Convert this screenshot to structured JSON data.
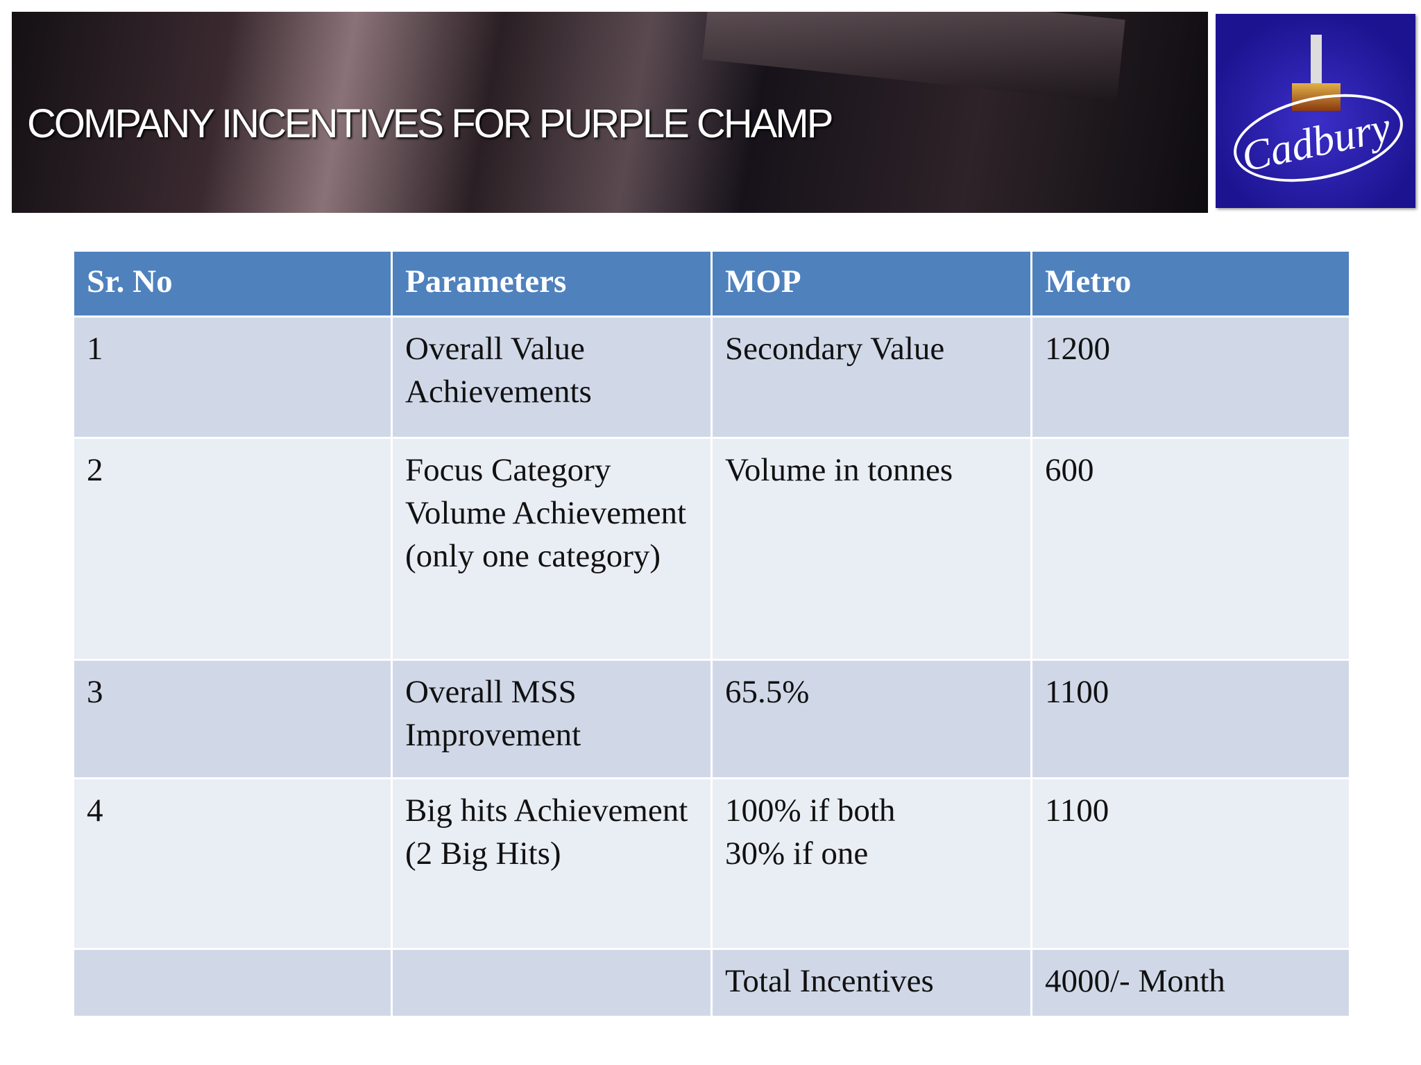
{
  "header": {
    "title": "COMPANY INCENTIVES FOR PURPLE CHAMP",
    "logo": "Cadbury"
  },
  "table": {
    "columns": [
      "Sr. No",
      "Parameters",
      "MOP",
      "Metro"
    ],
    "rows": [
      [
        "1",
        "Overall Value Achievements",
        "Secondary Value",
        "1200"
      ],
      [
        "2",
        "Focus Category Volume Achievement (only one category)",
        "Volume in tonnes",
        "600"
      ],
      [
        "3",
        "Overall MSS Improvement",
        "65.5%",
        "1100"
      ],
      [
        "4",
        "Big hits Achievement (2 Big Hits)",
        [
          "100% if both",
          "30% if one"
        ],
        "1100"
      ],
      [
        null,
        null,
        "Total Incentives",
        "4000/- Month"
      ]
    ]
  }
}
